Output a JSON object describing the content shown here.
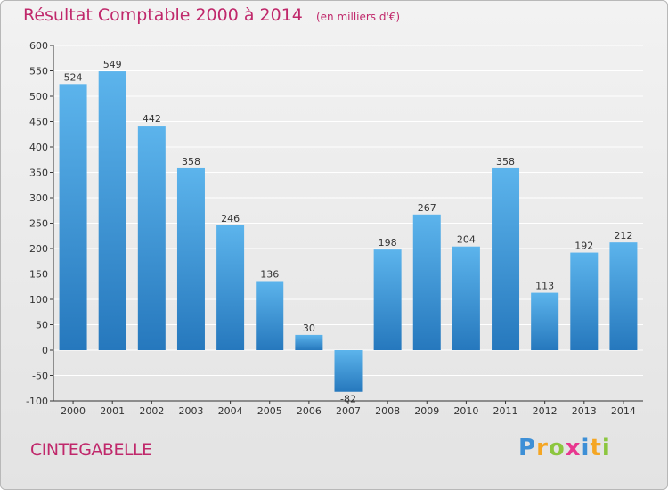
{
  "header": {
    "title": "Résultat Comptable 2000 à 2014",
    "unit": "(en milliers d'€)"
  },
  "footer": {
    "commune": "CINTEGABELLE",
    "logo_letters": [
      "P",
      "r",
      "o",
      "x",
      "i",
      "t",
      "i"
    ]
  },
  "colors": {
    "title": "#c0286b",
    "bar_top": "#5cb4ec",
    "bar_bottom": "#2678bd",
    "grid": "#ffffff",
    "axis": "#333333"
  },
  "chart_data": {
    "type": "bar",
    "title": "Résultat Comptable 2000 à 2014",
    "categories": [
      "2000",
      "2001",
      "2002",
      "2003",
      "2004",
      "2005",
      "2006",
      "2007",
      "2008",
      "2009",
      "2010",
      "2011",
      "2012",
      "2013",
      "2014"
    ],
    "values": [
      524,
      549,
      442,
      358,
      246,
      136,
      30,
      -82,
      198,
      267,
      204,
      358,
      113,
      192,
      212
    ],
    "ylim": [
      -100,
      600
    ],
    "yticks": [
      -100,
      -50,
      0,
      50,
      100,
      150,
      200,
      250,
      300,
      350,
      400,
      450,
      500,
      550,
      600
    ],
    "grid": true,
    "legend": "none"
  }
}
